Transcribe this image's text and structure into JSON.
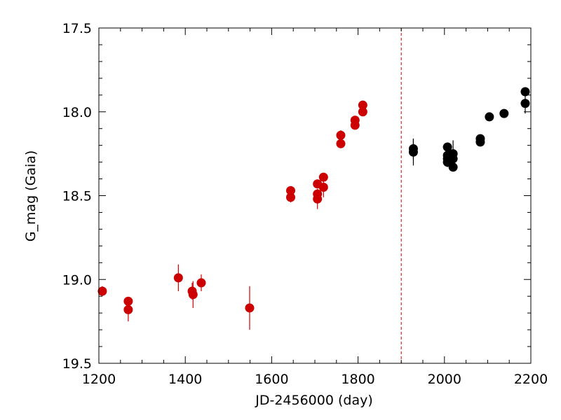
{
  "chart_data": {
    "type": "scatter",
    "title": "",
    "xlabel": "JD-2456000 (day)",
    "ylabel": "G_mag (Gaia)",
    "xlim": [
      1200,
      2200
    ],
    "ylim": [
      19.5,
      17.5
    ],
    "y_inverted": true,
    "grid": false,
    "x_ticks": [
      1200,
      1400,
      1600,
      1800,
      2000,
      2200
    ],
    "x_tick_labels": [
      "1200",
      "1400",
      "1600",
      "1800",
      "2000",
      "2200"
    ],
    "y_ticks": [
      17.5,
      18.0,
      18.5,
      19.0,
      19.5
    ],
    "y_tick_labels": [
      "17.5",
      "18.0",
      "18.5",
      "19.0",
      "19.5"
    ],
    "vertical_line": {
      "x": 1900,
      "color": "#cc0000",
      "style": "dashed"
    },
    "series": [
      {
        "color": "#cc0000",
        "points": [
          {
            "x": 1208,
            "y": 19.07,
            "err": 0.03
          },
          {
            "x": 1268,
            "y": 19.13,
            "err": 0.02
          },
          {
            "x": 1268,
            "y": 19.18,
            "err": 0.07
          },
          {
            "x": 1384,
            "y": 18.99,
            "err": 0.08
          },
          {
            "x": 1416,
            "y": 19.07,
            "err": 0.05
          },
          {
            "x": 1418,
            "y": 19.09,
            "err": 0.08
          },
          {
            "x": 1437,
            "y": 19.02,
            "err": 0.05
          },
          {
            "x": 1549,
            "y": 19.17,
            "err": 0.13
          },
          {
            "x": 1644,
            "y": 18.47,
            "err": 0.02
          },
          {
            "x": 1644,
            "y": 18.51,
            "err": 0.03
          },
          {
            "x": 1706,
            "y": 18.43,
            "err": 0.02
          },
          {
            "x": 1706,
            "y": 18.49,
            "err": 0.03
          },
          {
            "x": 1706,
            "y": 18.52,
            "err": 0.06
          },
          {
            "x": 1720,
            "y": 18.39,
            "err": 0.02
          },
          {
            "x": 1720,
            "y": 18.45,
            "err": 0.06
          },
          {
            "x": 1760,
            "y": 18.14,
            "err": 0.03
          },
          {
            "x": 1760,
            "y": 18.19,
            "err": 0.02
          },
          {
            "x": 1793,
            "y": 18.05,
            "err": 0.02
          },
          {
            "x": 1793,
            "y": 18.08,
            "err": 0.02
          },
          {
            "x": 1811,
            "y": 17.96,
            "err": 0.02
          },
          {
            "x": 1811,
            "y": 18.0,
            "err": 0.02
          }
        ]
      },
      {
        "color": "#000000",
        "points": [
          {
            "x": 1928,
            "y": 18.22,
            "err": 0.06
          },
          {
            "x": 1928,
            "y": 18.24,
            "err": 0.08
          },
          {
            "x": 2007,
            "y": 18.21,
            "err": 0.02
          },
          {
            "x": 2007,
            "y": 18.26,
            "err": 0.03
          },
          {
            "x": 2007,
            "y": 18.28,
            "err": 0.03
          },
          {
            "x": 2007,
            "y": 18.3,
            "err": 0.03
          },
          {
            "x": 2020,
            "y": 18.25,
            "err": 0.08
          },
          {
            "x": 2020,
            "y": 18.28,
            "err": 0.04
          },
          {
            "x": 2020,
            "y": 18.33,
            "err": 0.02
          },
          {
            "x": 2083,
            "y": 18.16,
            "err": 0.02
          },
          {
            "x": 2083,
            "y": 18.18,
            "err": 0.02
          },
          {
            "x": 2104,
            "y": 18.03,
            "err": 0.02
          },
          {
            "x": 2138,
            "y": 18.01,
            "err": 0.02
          },
          {
            "x": 2187,
            "y": 17.88,
            "err": 0.02
          },
          {
            "x": 2187,
            "y": 17.95,
            "err": 0.06
          }
        ]
      }
    ]
  }
}
